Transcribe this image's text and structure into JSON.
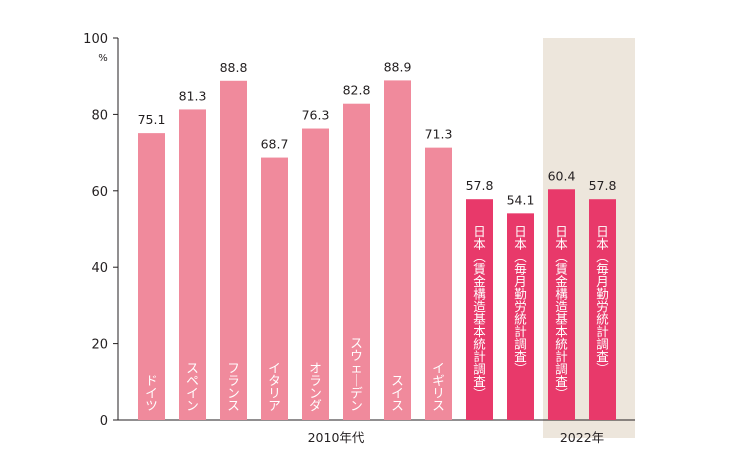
{
  "chart_data": {
    "type": "bar",
    "y_unit": "%",
    "ylim": [
      0,
      100
    ],
    "yticks": [
      0,
      20,
      40,
      60,
      80,
      100
    ],
    "grid": false,
    "categories": [
      "ドイツ",
      "スペイン",
      "フランス",
      "イタリア",
      "オランダ",
      "スウェーデン",
      "スイス",
      "イギリス",
      "日本（賃金構造基本統計調査）",
      "日本（毎月勤労統計調査）",
      "日本（賃金構造基本統計調査）",
      "日本（毎月勤労統計調査）"
    ],
    "values": [
      75.1,
      81.3,
      88.8,
      68.7,
      76.3,
      82.8,
      88.9,
      71.3,
      57.8,
      54.1,
      60.4,
      57.8
    ],
    "value_labels": [
      "75.1",
      "81.3",
      "88.8",
      "68.7",
      "76.3",
      "82.8",
      "88.9",
      "71.3",
      "57.8",
      "54.1",
      "60.4",
      "57.8"
    ],
    "groups": [
      {
        "label": "2010年代",
        "start": 0,
        "end": 9,
        "highlight": false
      },
      {
        "label": "2022年",
        "start": 10,
        "end": 11,
        "highlight": true
      }
    ],
    "colors": {
      "foreign_bar": "#f08a9c",
      "japan_bar": "#e8396a",
      "highlight_bg": "#ede6dc",
      "axis": "#231f20"
    }
  }
}
